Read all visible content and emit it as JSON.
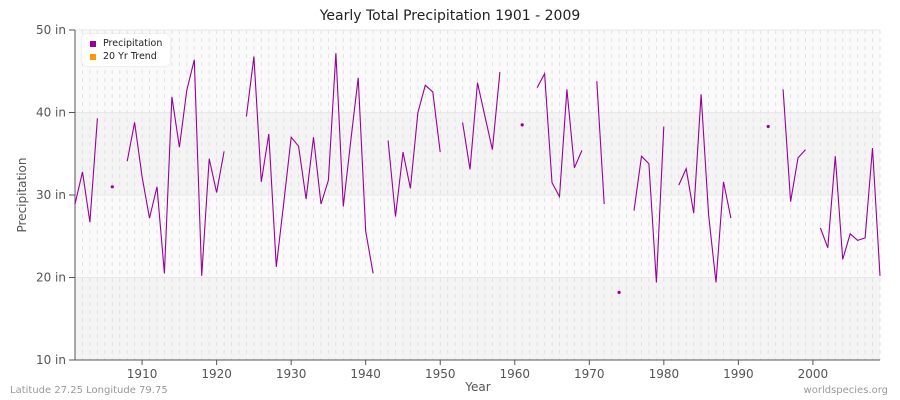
{
  "title": "Yearly Total Precipitation 1901 - 2009",
  "footer_left": "Latitude 27.25 Longitude 79.75",
  "footer_right": "worldspecies.org",
  "colors": {
    "precipitation": "#990099",
    "trend": "#ff9900"
  },
  "legend": [
    {
      "label": "Precipitation",
      "color": "#990099"
    },
    {
      "label": "20 Yr Trend",
      "color": "#ff9900"
    }
  ],
  "chart_data": {
    "type": "line",
    "title": "Yearly Total Precipitation 1901 - 2009",
    "xlabel": "Year",
    "ylabel": "Precipitation",
    "xlim": [
      1901,
      2009
    ],
    "ylim": [
      10,
      50
    ],
    "y_ticks": [
      "10 in",
      "20 in",
      "30 in",
      "40 in",
      "50 in"
    ],
    "x_ticks": [
      "1910",
      "1920",
      "1930",
      "1940",
      "1950",
      "1960",
      "1970",
      "1980",
      "1990",
      "2000"
    ],
    "legend_position": "top-left",
    "grid": true,
    "series": [
      {
        "name": "Precipitation",
        "x": [
          1901,
          1902,
          1903,
          1904,
          1905,
          1906,
          1907,
          1908,
          1909,
          1910,
          1911,
          1912,
          1913,
          1914,
          1915,
          1916,
          1917,
          1918,
          1919,
          1920,
          1921,
          1922,
          1923,
          1924,
          1925,
          1926,
          1927,
          1928,
          1929,
          1930,
          1931,
          1932,
          1933,
          1934,
          1935,
          1936,
          1937,
          1938,
          1939,
          1940,
          1941,
          1942,
          1943,
          1944,
          1945,
          1946,
          1947,
          1948,
          1949,
          1950,
          1951,
          1952,
          1953,
          1954,
          1955,
          1956,
          1957,
          1958,
          1959,
          1960,
          1961,
          1962,
          1963,
          1964,
          1965,
          1966,
          1967,
          1968,
          1969,
          1970,
          1971,
          1972,
          1973,
          1974,
          1975,
          1976,
          1977,
          1978,
          1979,
          1980,
          1981,
          1982,
          1983,
          1984,
          1985,
          1986,
          1987,
          1988,
          1989,
          1990,
          1991,
          1992,
          1993,
          1994,
          1995,
          1996,
          1997,
          1998,
          1999,
          2000,
          2001,
          2002,
          2003,
          2004,
          2005,
          2006,
          2007,
          2008,
          2009
        ],
        "values": [
          28.9,
          32.8,
          26.7,
          39.3,
          null,
          31.0,
          null,
          34.1,
          38.8,
          32.2,
          27.2,
          31.0,
          20.5,
          41.9,
          35.8,
          42.7,
          46.4,
          20.2,
          34.4,
          30.3,
          35.3,
          null,
          null,
          39.5,
          46.8,
          31.6,
          37.4,
          21.3,
          29.0,
          37.0,
          35.9,
          29.5,
          37.0,
          28.9,
          31.8,
          47.2,
          28.6,
          36.6,
          44.2,
          25.6,
          20.5,
          null,
          36.6,
          27.4,
          35.2,
          30.8,
          40.0,
          43.3,
          42.5,
          35.2,
          null,
          null,
          38.8,
          33.1,
          43.6,
          39.5,
          35.5,
          44.9,
          null,
          null,
          38.5,
          null,
          43.0,
          44.7,
          31.5,
          29.8,
          42.8,
          33.3,
          35.4,
          null,
          43.8,
          28.9,
          null,
          18.2,
          null,
          28.1,
          34.7,
          33.8,
          19.4,
          38.3,
          null,
          31.2,
          33.2,
          27.8,
          42.2,
          27.6,
          19.4,
          31.6,
          27.2,
          null,
          null,
          null,
          null,
          38.3,
          null,
          42.8,
          29.2,
          34.5,
          35.5,
          null,
          26.0,
          23.6,
          34.7,
          22.2,
          25.3,
          24.5,
          24.8,
          35.7,
          20.2
        ]
      },
      {
        "name": "20 Yr Trend",
        "x": [],
        "values": []
      }
    ]
  }
}
